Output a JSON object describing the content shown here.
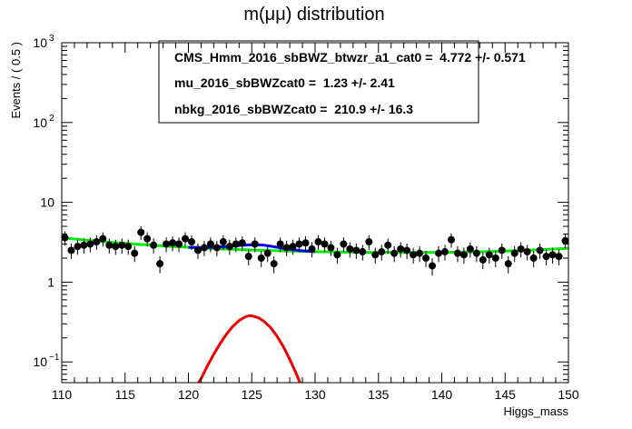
{
  "chart_data": {
    "type": "scatter",
    "title": "m(μμ) distribution",
    "xlabel": "Higgs_mass",
    "ylabel": "Events / ( 0.5 )",
    "xlim": [
      110,
      150
    ],
    "ylim": [
      0.055,
      1000
    ],
    "yscale": "log",
    "grid": false,
    "x_ticks": [
      110,
      115,
      120,
      125,
      130,
      135,
      140,
      145,
      150
    ],
    "y_ticks": [
      {
        "value": 0.1,
        "label": "10",
        "exp": "−1"
      },
      {
        "value": 1,
        "label": "1",
        "exp": ""
      },
      {
        "value": 10,
        "label": "10",
        "exp": ""
      },
      {
        "value": 100,
        "label": "10",
        "exp": "2"
      },
      {
        "value": 1000,
        "label": "10",
        "exp": "3"
      }
    ],
    "legend": {
      "placement": "top",
      "lines": [
        "CMS_Hmm_2016_sbBWZ_btwzr_a1_cat0 =  4.772 +/- 0.571",
        "mu_2016_sbBWZcat0 =  1.23 +/- 2.41",
        "nbkg_2016_sbBWZcat0 =  210.9 +/- 16.3"
      ]
    },
    "colors": {
      "data": "#000000",
      "background_fit": "#00ee00",
      "total_fit": "#0000ff",
      "signal": "#ee0000"
    },
    "series": [
      {
        "style": "points-with-errors",
        "x": [
          110.25,
          110.75,
          111.25,
          111.75,
          112.25,
          112.75,
          113.25,
          113.75,
          114.25,
          114.75,
          115.25,
          115.75,
          116.25,
          116.75,
          117.25,
          117.75,
          118.25,
          118.75,
          119.25,
          119.75,
          120.25,
          120.75,
          121.25,
          121.75,
          122.25,
          122.75,
          123.25,
          123.75,
          124.25,
          124.75,
          125.25,
          125.75,
          126.25,
          126.75,
          127.25,
          127.75,
          128.25,
          128.75,
          129.25,
          129.75,
          130.25,
          130.75,
          131.25,
          131.75,
          132.25,
          132.75,
          133.25,
          133.75,
          134.25,
          134.75,
          135.25,
          135.75,
          136.25,
          136.75,
          137.25,
          137.75,
          138.25,
          138.75,
          139.25,
          139.75,
          140.25,
          140.75,
          141.25,
          141.75,
          142.25,
          142.75,
          143.25,
          143.75,
          144.25,
          144.75,
          145.25,
          145.75,
          146.25,
          146.75,
          147.25,
          147.75,
          148.25,
          148.75,
          149.25,
          149.75
        ],
        "y": [
          3.6,
          2.5,
          2.8,
          2.9,
          3.0,
          3.2,
          3.5,
          2.9,
          2.8,
          2.9,
          2.8,
          2.3,
          4.2,
          3.5,
          2.9,
          1.7,
          3.0,
          3.1,
          3.0,
          3.5,
          3.2,
          2.5,
          2.7,
          3.0,
          2.7,
          3.2,
          2.8,
          3.0,
          3.1,
          2.1,
          3.0,
          2.0,
          2.3,
          1.7,
          3.0,
          2.7,
          2.8,
          3.0,
          3.1,
          2.6,
          3.2,
          3.0,
          2.7,
          2.2,
          3.0,
          2.6,
          2.5,
          2.4,
          3.2,
          2.2,
          2.4,
          2.9,
          2.3,
          2.6,
          2.5,
          2.2,
          2.3,
          2.0,
          1.6,
          2.3,
          2.4,
          3.4,
          2.3,
          2.2,
          2.6,
          2.3,
          1.9,
          2.2,
          2.0,
          2.5,
          1.7,
          2.3,
          2.6,
          2.4,
          2.0,
          2.5,
          2.1,
          2.2,
          2.1,
          3.3
        ]
      },
      {
        "style": "line",
        "role": "background",
        "x": [
          110,
          112,
          114,
          116,
          118,
          120,
          122,
          124,
          126,
          128,
          130,
          132,
          134,
          136,
          138,
          140,
          142,
          144,
          146,
          148,
          150
        ],
        "y": [
          3.6,
          3.35,
          3.15,
          2.98,
          2.84,
          2.73,
          2.64,
          2.56,
          2.5,
          2.45,
          2.41,
          2.38,
          2.36,
          2.35,
          2.35,
          2.36,
          2.38,
          2.42,
          2.48,
          2.56,
          2.66
        ]
      },
      {
        "style": "line",
        "role": "total",
        "x": [
          120,
          121,
          122,
          123,
          124,
          125,
          126,
          127,
          128,
          129,
          130
        ],
        "y": [
          2.73,
          2.72,
          2.74,
          2.79,
          2.88,
          2.95,
          2.9,
          2.74,
          2.58,
          2.47,
          2.41
        ]
      },
      {
        "style": "line",
        "role": "signal",
        "x": [
          120.8,
          121.0,
          121.5,
          122.0,
          122.5,
          123.0,
          123.5,
          124.0,
          124.5,
          124.8,
          125.0,
          125.5,
          126.0,
          126.5,
          127.0,
          127.5,
          128.0,
          128.5,
          128.8
        ],
        "y": [
          0.055,
          0.062,
          0.089,
          0.125,
          0.17,
          0.222,
          0.278,
          0.33,
          0.368,
          0.38,
          0.378,
          0.36,
          0.32,
          0.268,
          0.21,
          0.155,
          0.108,
          0.072,
          0.055
        ]
      }
    ]
  }
}
